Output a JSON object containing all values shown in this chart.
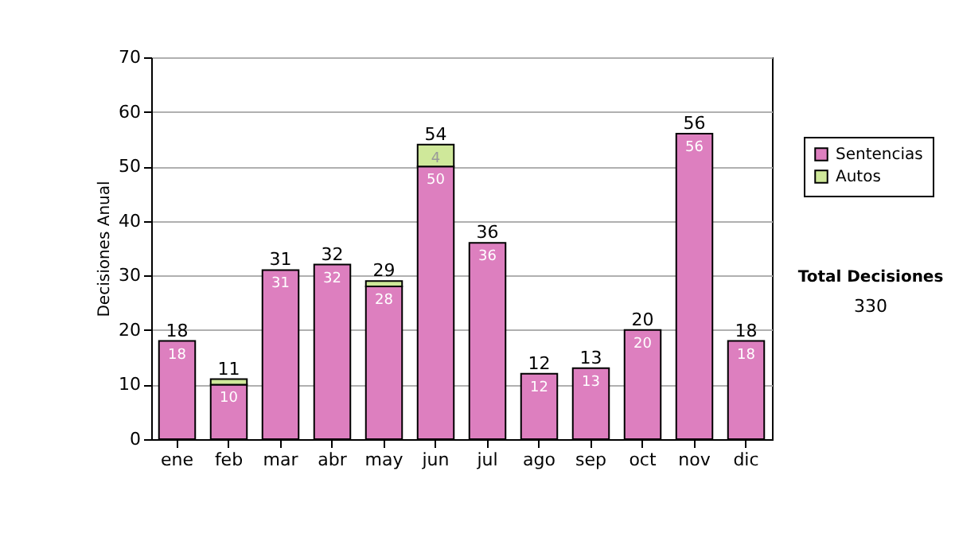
{
  "chart_data": {
    "type": "bar",
    "stacked": true,
    "ylabel": "Decisiones Anual",
    "categories": [
      "ene",
      "feb",
      "mar",
      "abr",
      "may",
      "jun",
      "jul",
      "ago",
      "sep",
      "oct",
      "nov",
      "dic"
    ],
    "series": [
      {
        "name": "Sentencias",
        "color": "#dd7fbf",
        "values": [
          18,
          10,
          31,
          32,
          28,
          50,
          36,
          12,
          13,
          20,
          56,
          18
        ],
        "value_labels": [
          "18",
          "10",
          "31",
          "32",
          "28",
          "50",
          "36",
          "12",
          "13",
          "20",
          "56",
          "18"
        ]
      },
      {
        "name": "Autos",
        "color": "#cfe89a",
        "values": [
          null,
          1,
          null,
          null,
          1,
          4,
          null,
          null,
          null,
          null,
          null,
          null
        ],
        "value_labels": [
          null,
          null,
          null,
          null,
          null,
          "4",
          null,
          null,
          null,
          null,
          null,
          null
        ]
      }
    ],
    "totals": [
      "18",
      "11",
      "31",
      "32",
      "29",
      "54",
      "36",
      "12",
      "13",
      "20",
      "56",
      "18"
    ],
    "ylim": [
      0,
      70
    ],
    "yticks": [
      0,
      10,
      20,
      30,
      40,
      50,
      60,
      70
    ],
    "grid": "y",
    "legend": "top right",
    "annotations": [
      "Total Decisiones",
      "330"
    ]
  }
}
